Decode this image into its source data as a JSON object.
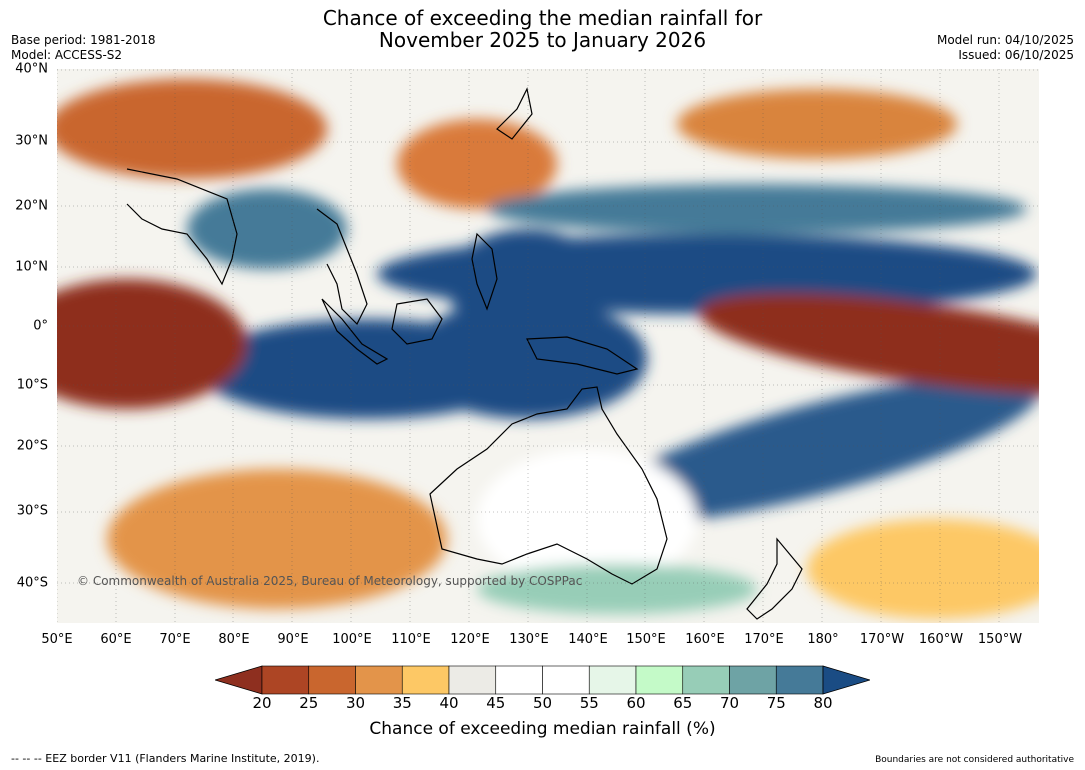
{
  "title": {
    "line1": "Chance of exceeding the median rainfall for",
    "line2": "November 2025 to January 2026"
  },
  "meta": {
    "base_period": "Base period: 1981-2018",
    "model": "Model: ACCESS-S2",
    "model_run": "Model run: 04/10/2025",
    "issued": "Issued: 06/10/2025"
  },
  "map": {
    "copyright": "© Commonwealth of Australia 2025, Bureau of Meteorology, supported by COSPPac",
    "lat_labels": [
      "40°N",
      "30°N",
      "20°N",
      "10°N",
      "0°",
      "10°S",
      "20°S",
      "30°S",
      "40°S"
    ],
    "lon_labels": [
      "50°E",
      "60°E",
      "70°E",
      "80°E",
      "90°E",
      "100°E",
      "110°E",
      "120°E",
      "130°E",
      "140°E",
      "150°E",
      "160°E",
      "170°E",
      "180°",
      "170°W",
      "160°W",
      "150°W"
    ],
    "lat_range": [
      -46,
      40
    ],
    "lon_range": [
      50,
      217
    ]
  },
  "colorbar": {
    "label": "Chance of exceeding median rainfall (%)",
    "ticks": [
      "20",
      "25",
      "30",
      "35",
      "40",
      "45",
      "50",
      "55",
      "60",
      "65",
      "70",
      "75",
      "80"
    ],
    "colors": [
      "#8e2f1f",
      "#ad4524",
      "#c9662e",
      "#e3944a",
      "#fdc865",
      "#ecebe6",
      "#ffffff",
      "#ffffff",
      "#e6f6e8",
      "#c4fac8",
      "#97cdb7",
      "#6ea3a5",
      "#457a98",
      "#1a4c84"
    ]
  },
  "footer": {
    "eez": "--  --  -- EEZ border V11 (Flanders Marine Institute, 2019).",
    "disclaimer": "Boundaries are not considered authoritative"
  }
}
